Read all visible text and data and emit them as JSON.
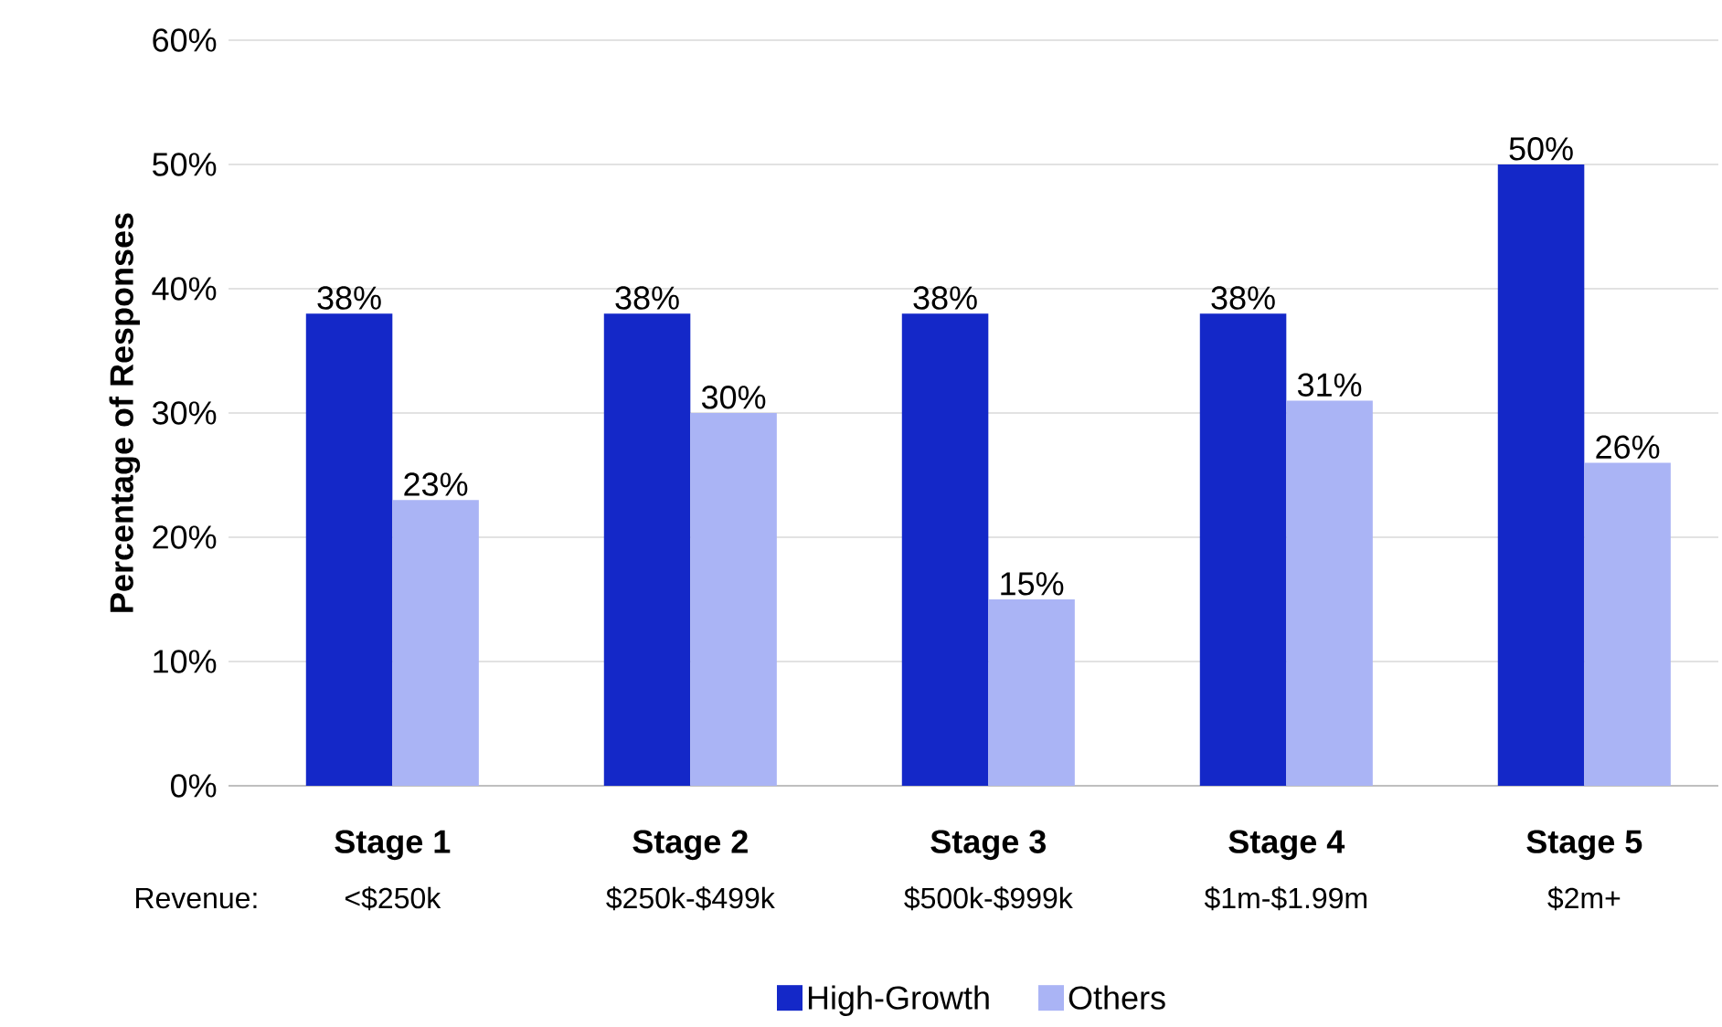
{
  "chart_data": {
    "type": "bar",
    "ylabel": "Percentage of Responses",
    "categories": [
      "Stage 1",
      "Stage 2",
      "Stage 3",
      "Stage 4",
      "Stage 5"
    ],
    "series": [
      {
        "name": "High-Growth",
        "color": "#1428c8",
        "values": [
          38,
          38,
          38,
          38,
          50
        ],
        "value_labels": [
          "38%",
          "38%",
          "38%",
          "38%",
          "50%"
        ]
      },
      {
        "name": "Others",
        "color": "#aab4f5",
        "values": [
          23,
          30,
          15,
          31,
          26
        ],
        "value_labels": [
          "23%",
          "30%",
          "15%",
          "31%",
          "26%"
        ]
      }
    ],
    "ylim": [
      0,
      60
    ],
    "yticks": [
      {
        "value": 0,
        "label": "0%"
      },
      {
        "value": 10,
        "label": "10%"
      },
      {
        "value": 20,
        "label": "20%"
      },
      {
        "value": 30,
        "label": "30%"
      },
      {
        "value": 40,
        "label": "40%"
      },
      {
        "value": 50,
        "label": "50%"
      },
      {
        "value": 60,
        "label": "60%"
      }
    ],
    "grid": "y",
    "legend": "bottom",
    "annotations": [
      "Revenue:",
      "<$250k",
      "$250k-$499k",
      "$500k-$999k",
      "$1m-$1.99m",
      "$2m+"
    ]
  }
}
